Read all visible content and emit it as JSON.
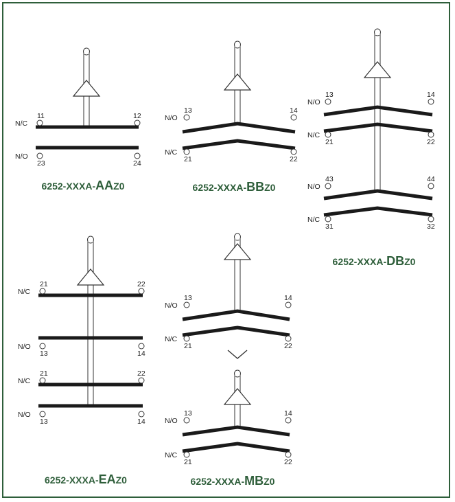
{
  "diagrams": [
    {
      "id": "aa",
      "caption": {
        "prefix": "6252-XXXA-",
        "code": "AA",
        "suffix": "Z0"
      },
      "contacts": [
        {
          "type": "N/C",
          "left_terminal": "11",
          "right_terminal": "12"
        },
        {
          "type": "N/O",
          "left_terminal": "23",
          "right_terminal": "24"
        }
      ]
    },
    {
      "id": "bb",
      "caption": {
        "prefix": "6252-XXXA-",
        "code": "BB",
        "suffix": "Z0"
      },
      "contacts": [
        {
          "type": "N/O",
          "left_terminal": "13",
          "right_terminal": "14"
        },
        {
          "type": "N/C",
          "left_terminal": "21",
          "right_terminal": "22"
        }
      ]
    },
    {
      "id": "db",
      "caption": {
        "prefix": "6252-XXXA-",
        "code": "DB",
        "suffix": "Z0"
      },
      "contacts": [
        {
          "type": "N/O",
          "left_terminal": "13",
          "right_terminal": "14"
        },
        {
          "type": "N/C",
          "left_terminal": "21",
          "right_terminal": "22"
        },
        {
          "type": "N/O",
          "left_terminal": "43",
          "right_terminal": "44"
        },
        {
          "type": "N/C",
          "left_terminal": "31",
          "right_terminal": "32"
        }
      ]
    },
    {
      "id": "ea",
      "caption": {
        "prefix": "6252-XXXA-",
        "code": "EA",
        "suffix": "Z0"
      },
      "contacts": [
        {
          "type": "N/C",
          "left_terminal": "21",
          "right_terminal": "22"
        },
        {
          "type": "N/O",
          "left_terminal": "13",
          "right_terminal": "14"
        },
        {
          "type": "N/C",
          "left_terminal": "21",
          "right_terminal": "22"
        },
        {
          "type": "N/O",
          "left_terminal": "13",
          "right_terminal": "14"
        }
      ]
    },
    {
      "id": "mb",
      "caption": {
        "prefix": "6252-XXXA-",
        "code": "MB",
        "suffix": "Z0"
      },
      "contacts": [
        {
          "type": "N/O",
          "left_terminal": "13",
          "right_terminal": "14"
        },
        {
          "type": "N/C",
          "left_terminal": "21",
          "right_terminal": "22"
        },
        {
          "type": "N/O",
          "left_terminal": "13",
          "right_terminal": "14"
        },
        {
          "type": "N/C",
          "left_terminal": "21",
          "right_terminal": "22"
        }
      ]
    }
  ],
  "colors": {
    "border": "#2e5e3a",
    "caption": "#2e5e3a",
    "bar": "#1a1a1a",
    "line": "#333333"
  }
}
